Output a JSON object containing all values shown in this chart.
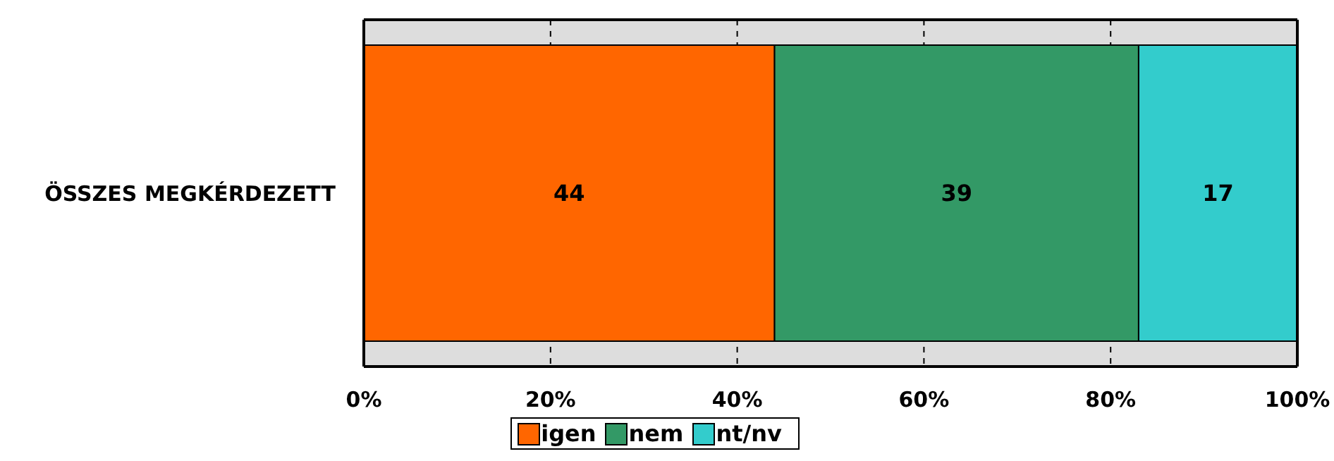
{
  "chart_data": {
    "type": "bar",
    "orientation": "horizontal",
    "stacked": true,
    "categories": [
      "ÖSSZES MEGKÉRDEZETT"
    ],
    "series": [
      {
        "name": "igen",
        "color": "#ff6600",
        "values": [
          44
        ]
      },
      {
        "name": "nem",
        "color": "#339966",
        "values": [
          39
        ]
      },
      {
        "name": "nt/nv",
        "color": "#33cccc",
        "values": [
          17
        ]
      }
    ],
    "xlim": [
      0,
      100
    ],
    "xticks": [
      {
        "value": 0,
        "label": "0%"
      },
      {
        "value": 20,
        "label": "20%"
      },
      {
        "value": 40,
        "label": "40%"
      },
      {
        "value": 60,
        "label": "60%"
      },
      {
        "value": 80,
        "label": "80%"
      },
      {
        "value": 100,
        "label": "100%"
      }
    ],
    "grid": "x",
    "legend": "bottom",
    "data_labels": true
  }
}
